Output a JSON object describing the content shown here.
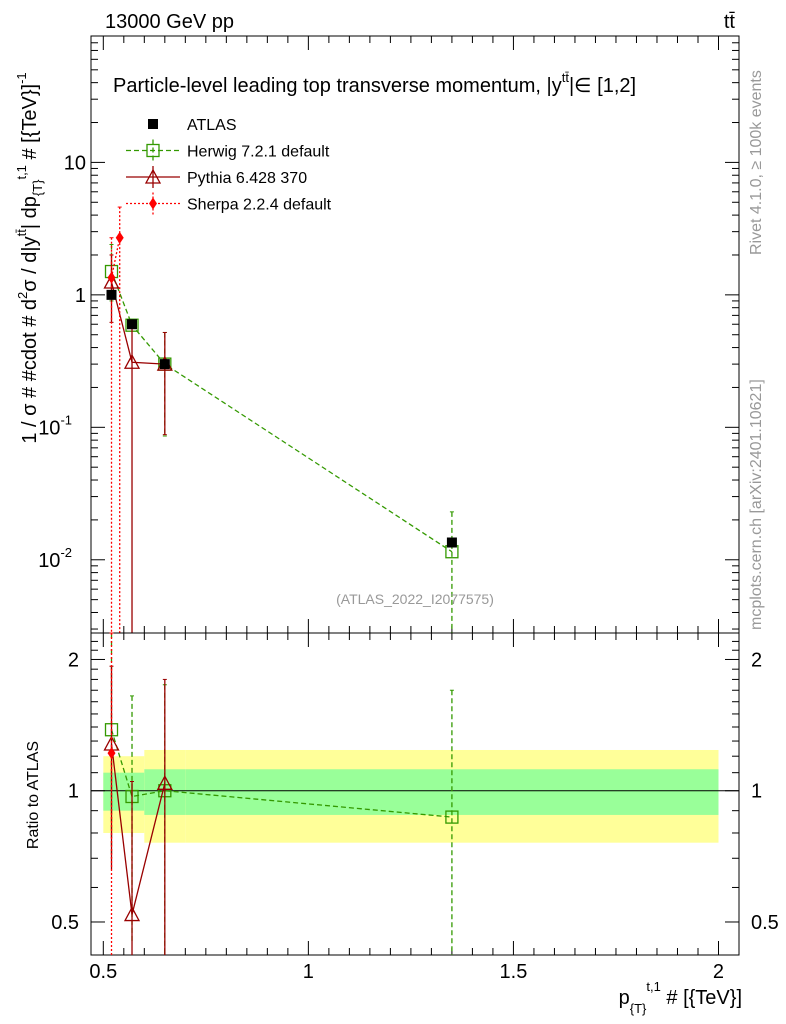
{
  "header": {
    "left": "13000 GeV pp",
    "right": "tt̄"
  },
  "side": {
    "rivet": "Rivet 4.1.0, ≥ 100k events",
    "mcplots": "mcplots.cern.ch [arXiv:2401.10621]"
  },
  "chart_data": {
    "type": "line",
    "title": "Particle-level leading top transverse momentum, |y^{tt̄}| ∈ [1,2]",
    "title_text": "Particle-level leading top transverse momentum, |",
    "title_sym": "y",
    "title_sup": "tt̄",
    "title_tail": "|∈ [1,2]",
    "watermark": "(ATLAS_2022_I2077575)",
    "xlabel": "p_{T}^{t,1} # [{TeV}]",
    "xlabel_main": "p",
    "xlabel_sub": "{T}",
    "xlabel_sup": "t,1",
    "xlabel_tail": " # [{TeV}]",
    "ylabel": "1 / σ # #cdot # d²σ / d|y^{tt̄}| dp_{T}^{t,1} # [{TeV}⁻¹]",
    "ylabel_main": "1 / σ # #cdot # d",
    "ylabel_sup2": "2",
    "ylabel_mid": "σ / d|y",
    "ylabel_suptt": "tt̄",
    "ylabel_mid2": "| dp",
    "ylabel_sub": "{T}",
    "ylabel_supt1": "t,1",
    "ylabel_tail": " # [{TeV}]",
    "ylabel_supinv": "-1",
    "ratio_ylabel": "Ratio to ATLAS",
    "xlim": [
      0.47,
      2.05
    ],
    "ylim": [
      0.0028,
      90
    ],
    "ratio_ylim": [
      0.42,
      2.3
    ],
    "x_ticks": [
      "0.5",
      "1",
      "1.5",
      "2"
    ],
    "x_tick_values": [
      0.5,
      1,
      1.5,
      2
    ],
    "y_ticks": [
      {
        "value": 0.01,
        "base": "10",
        "exp": "-2"
      },
      {
        "value": 0.1,
        "base": "10",
        "exp": "-1"
      },
      {
        "value": 1,
        "base": "1",
        "exp": ""
      },
      {
        "value": 10,
        "base": "10",
        "exp": ""
      }
    ],
    "ratio_ticks": [
      "0.5",
      "1",
      "2"
    ],
    "ratio_tick_values": [
      0.5,
      1,
      2
    ],
    "bins": [
      [
        0.5,
        0.54
      ],
      [
        0.54,
        0.6
      ],
      [
        0.6,
        0.7
      ],
      [
        0.7,
        2.0
      ]
    ],
    "series": [
      {
        "name": "ATLAS",
        "color": "#000000",
        "marker": "square",
        "x": [
          0.52,
          0.57,
          0.65,
          1.35
        ],
        "y": [
          1.0,
          0.6,
          0.3,
          0.0135
        ],
        "band_inner": [
          0.1,
          0.1,
          0.12,
          0.12
        ],
        "band_outer": [
          0.2,
          0.2,
          0.24,
          0.24
        ]
      },
      {
        "name": "Herwig 7.2.1 default",
        "color": "#339900",
        "marker": "open-square",
        "dash": "5,3",
        "x": [
          0.52,
          0.57,
          0.65,
          1.35
        ],
        "y": [
          1.5,
          0.59,
          0.3,
          0.0115
        ],
        "err_lo": [
          0.9,
          0.6,
          0.086,
          0.0028
        ],
        "err_hi": [
          2.4,
          0.65,
          0.52,
          0.023
        ],
        "ratio": [
          1.38,
          0.97,
          1.0,
          0.87
        ],
        "ratio_lo": [
          0.7,
          0.45,
          0.0,
          0.0
        ],
        "ratio_hi": [
          2.3,
          1.65,
          1.75,
          1.7
        ]
      },
      {
        "name": "Pythia 6.428 370",
        "color": "#990000",
        "marker": "open-triangle",
        "x": [
          0.52,
          0.57,
          0.65
        ],
        "y": [
          1.25,
          0.31,
          0.3
        ],
        "err_lo": [
          0.62,
          0.0028,
          0.088
        ],
        "err_hi": [
          2.0,
          0.62,
          0.52
        ],
        "ratio": [
          1.28,
          0.52,
          1.04
        ],
        "ratio_lo": [
          0.66,
          0.0,
          0.0
        ],
        "ratio_hi": [
          1.93,
          1.05,
          1.8
        ]
      },
      {
        "name": "Sherpa 2.2.4 default",
        "color": "#ff0000",
        "marker": "diamond",
        "dash": "2,2",
        "x": [
          0.52,
          0.54
        ],
        "y": [
          1.35,
          2.7
        ],
        "err_lo": [
          0.0028,
          0.0028
        ],
        "err_hi": [
          2.7,
          4.6
        ],
        "ratio": [
          1.22
        ],
        "ratio_lo": [
          0.0
        ],
        "ratio_hi": [
          2.3
        ]
      }
    ]
  }
}
